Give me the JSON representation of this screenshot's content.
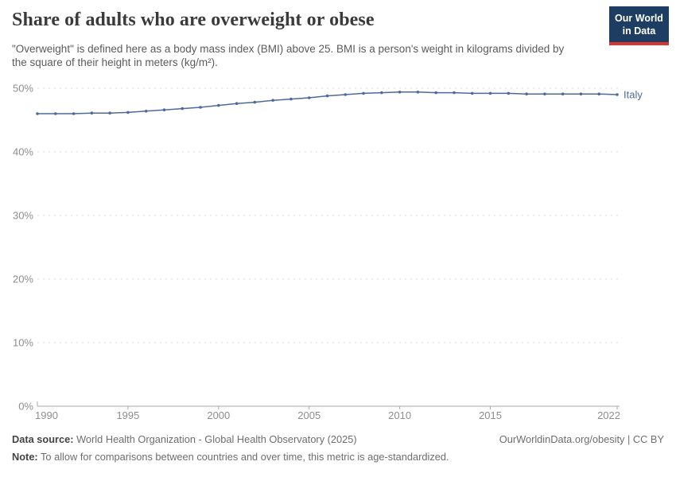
{
  "header": {
    "logo_line1": "Our World",
    "logo_line2": "in Data"
  },
  "chart_data": {
    "type": "line",
    "title": "Share of adults who are overweight or obese",
    "subtitle": "\"Overweight\" is defined here as a body mass index (BMI) above 25. BMI is a person's weight in kilograms divided by the square of their height in meters (kg/m²).",
    "x": [
      1990,
      1991,
      1992,
      1993,
      1994,
      1995,
      1996,
      1997,
      1998,
      1999,
      2000,
      2001,
      2002,
      2003,
      2004,
      2005,
      2006,
      2007,
      2008,
      2009,
      2010,
      2011,
      2012,
      2013,
      2014,
      2015,
      2016,
      2017,
      2018,
      2019,
      2020,
      2021,
      2022
    ],
    "series": [
      {
        "name": "Italy",
        "color": "#4c6a9c",
        "values": [
          46.0,
          46.0,
          46.0,
          46.1,
          46.1,
          46.2,
          46.4,
          46.6,
          46.8,
          47.0,
          47.3,
          47.6,
          47.8,
          48.1,
          48.3,
          48.5,
          48.8,
          49.0,
          49.2,
          49.3,
          49.4,
          49.4,
          49.3,
          49.3,
          49.2,
          49.2,
          49.2,
          49.1,
          49.1,
          49.1,
          49.1,
          49.1,
          49.0
        ]
      }
    ],
    "xlabel": "",
    "ylabel": "",
    "ylim": [
      0,
      50
    ],
    "yticks": [
      0,
      10,
      20,
      30,
      40,
      50
    ],
    "ytick_suffix": "%",
    "xticks": [
      1990,
      1995,
      2000,
      2005,
      2010,
      2015,
      2022
    ],
    "grid": "horizontal-dashed",
    "legend_position": "line-end",
    "marker": "circle"
  },
  "colors": {
    "line": "#4c6a9c",
    "grid": "#d9d9d9",
    "axis": "#a8a8a8",
    "tick_label": "#8e8e8e",
    "title": "#3a3a3a",
    "subtitle": "#5b5b5b",
    "logo_bg": "#1d3d63",
    "logo_stripe": "#d8352e"
  },
  "footer": {
    "datasource_label": "Data source:",
    "datasource_text": " World Health Organization - Global Health Observatory (2025)",
    "link": "OurWorldinData.org/obesity | CC BY",
    "note_label": "Note:",
    "note_text": " To allow for comparisons between countries and over time, this metric is age-standardized."
  }
}
